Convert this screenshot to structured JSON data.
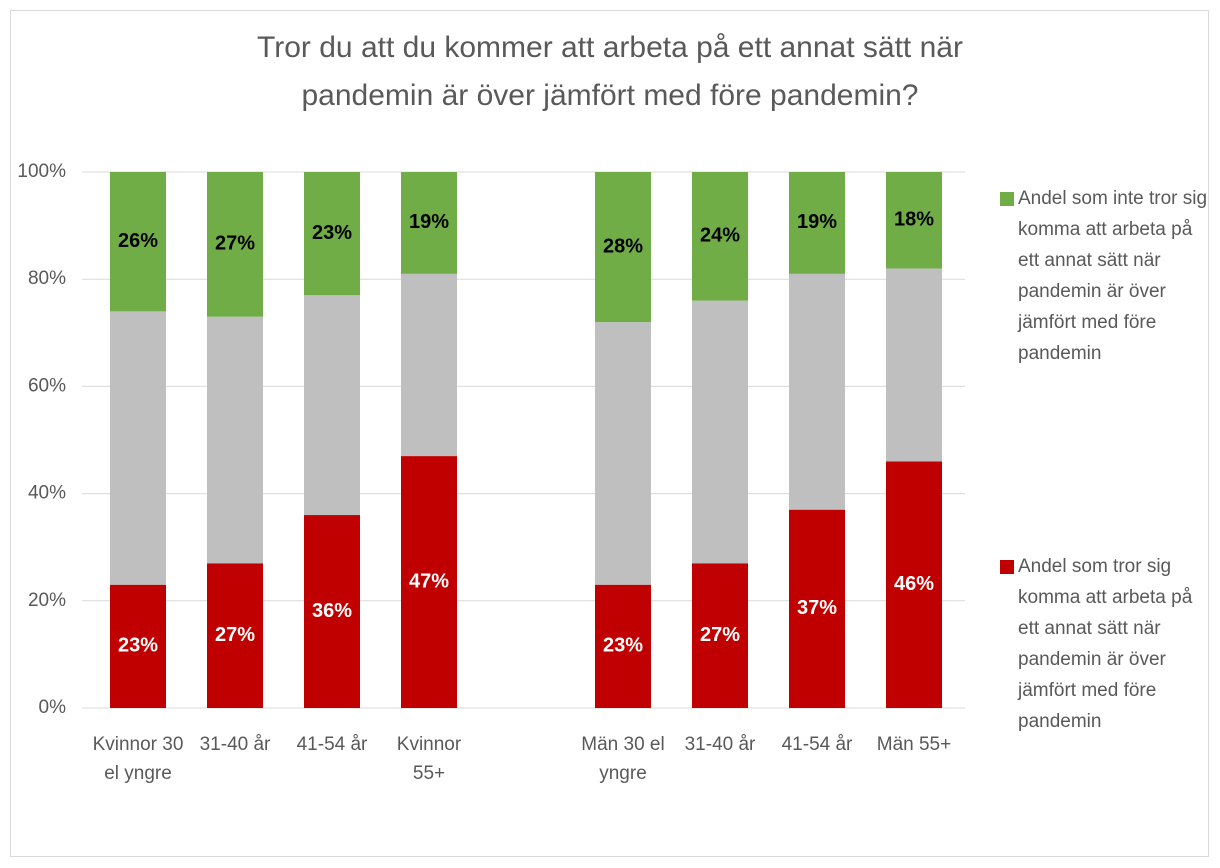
{
  "chart_data": {
    "type": "stacked_bar",
    "title": "Tror du att du kommer att arbeta på ett annat sätt när pandemin är över jämfört med före pandemin?",
    "categories": [
      "Kvinnor 30 el yngre",
      "31-40 år",
      "41-54 år",
      "Kvinnor 55+",
      null,
      "Män 30 el yngre",
      "31-40 år",
      "41-54 år",
      "Män 55+"
    ],
    "series": [
      {
        "name": "Andel som tror sig komma att arbeta på ett annat sätt när pandemin är över jämfört med före pandemin",
        "color": "#c00000",
        "values": [
          23,
          27,
          36,
          47,
          null,
          23,
          27,
          37,
          46
        ],
        "value_labels": [
          "23%",
          "27%",
          "36%",
          "47%",
          null,
          "23%",
          "27%",
          "37%",
          "46%"
        ]
      },
      {
        "color": "#bfbfbf",
        "values": [
          51,
          46,
          41,
          34,
          null,
          49,
          49,
          44,
          36
        ]
      },
      {
        "name": "Andel som inte tror sig komma att arbeta på ett annat sätt när pandemin är över jämfört med före pandemin",
        "color": "#70ad47",
        "values": [
          26,
          27,
          23,
          19,
          null,
          28,
          24,
          19,
          18
        ],
        "value_labels": [
          "26%",
          "27%",
          "23%",
          "19%",
          null,
          "28%",
          "24%",
          "19%",
          "18%"
        ]
      }
    ],
    "ylim": [
      0,
      100
    ],
    "yticks": [
      {
        "value": 0,
        "label": "0%"
      },
      {
        "value": 20,
        "label": "20%"
      },
      {
        "value": 40,
        "label": "40%"
      },
      {
        "value": 60,
        "label": "60%"
      },
      {
        "value": 80,
        "label": "80%"
      },
      {
        "value": 100,
        "label": "100%"
      }
    ],
    "grid": true,
    "legend": "right"
  }
}
